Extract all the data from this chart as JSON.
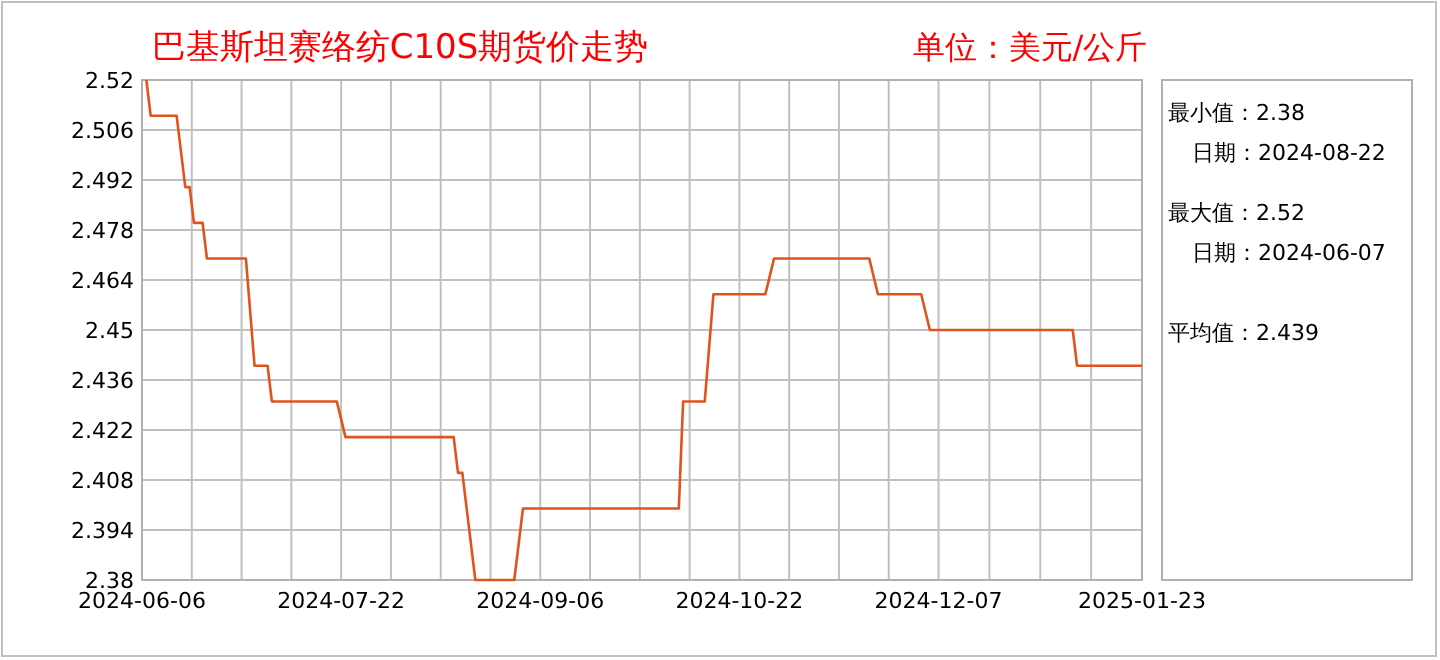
{
  "chart_data": {
    "type": "line",
    "title": "巴基斯坦赛络纺C10S期货价走势",
    "subtitle": "单位：美元/公斤",
    "annotations": [
      "最小值：2.38",
      "日期：2024-08-22",
      "最大值：2.52",
      "日期：2024-06-07",
      "平均值：2.439"
    ],
    "x": [
      "2024-06-07",
      "2024-06-08",
      "2024-06-14",
      "2024-06-16",
      "2024-06-17",
      "2024-06-18",
      "2024-06-20",
      "2024-06-21",
      "2024-06-30",
      "2024-07-02",
      "2024-07-05",
      "2024-07-06",
      "2024-07-21",
      "2024-07-23",
      "2024-08-17",
      "2024-08-18",
      "2024-08-19",
      "2024-08-22",
      "2024-08-31",
      "2024-09-02",
      "2024-10-08",
      "2024-10-09",
      "2024-10-14",
      "2024-10-16",
      "2024-10-28",
      "2024-10-30",
      "2024-11-21",
      "2024-11-23",
      "2024-12-03",
      "2024-12-05",
      "2025-01-07",
      "2025-01-08",
      "2025-01-23"
    ],
    "series": [
      {
        "color": "#e0531c",
        "values": [
          2.52,
          2.51,
          2.51,
          2.49,
          2.49,
          2.48,
          2.48,
          2.47,
          2.47,
          2.44,
          2.44,
          2.43,
          2.43,
          2.42,
          2.42,
          2.41,
          2.41,
          2.38,
          2.38,
          2.4,
          2.4,
          2.43,
          2.43,
          2.46,
          2.46,
          2.47,
          2.47,
          2.46,
          2.46,
          2.45,
          2.45,
          2.44,
          2.44
        ]
      }
    ],
    "xlim": [
      "2024-06-06",
      "2025-01-23"
    ],
    "ylim": [
      2.38,
      2.52
    ],
    "xticks": [
      "2024-06-06",
      "2024-07-22",
      "2024-09-06",
      "2024-10-22",
      "2024-12-07",
      "2025-01-23"
    ],
    "yticks": [
      2.38,
      2.394,
      2.408,
      2.422,
      2.436,
      2.45,
      2.464,
      2.478,
      2.492,
      2.506,
      2.52
    ],
    "grid": true
  }
}
